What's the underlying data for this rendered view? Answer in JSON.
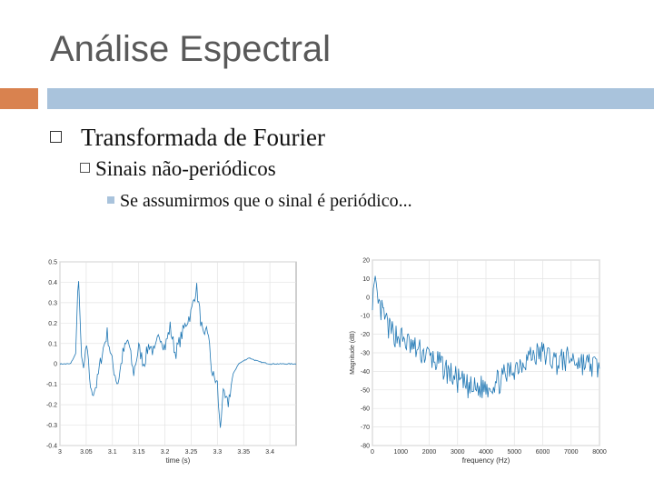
{
  "slide": {
    "title": "Análise Espectral",
    "bullet1": "Transformada de Fourier",
    "bullet2": "Sinais não-periódicos",
    "bullet3": "Se assumirmos que o sinal é periódico..."
  },
  "colors": {
    "accent_orange": "#d9824f",
    "accent_blue": "#a9c3dc",
    "plot_line": "#1f77b4"
  },
  "chart_data": [
    {
      "type": "line",
      "title": "",
      "xlabel": "time (s)",
      "ylabel": "",
      "xlim": [
        3,
        3.45
      ],
      "ylim": [
        -0.4,
        0.5
      ],
      "xticks": [
        "3",
        "3.05",
        "3.1",
        "3.15",
        "3.2",
        "3.25",
        "3.3",
        "3.35",
        "3.4"
      ],
      "yticks": [
        "0.5",
        "0.4",
        "0.3",
        "0.2",
        "0.1",
        "0",
        "-0.1",
        "-0.2",
        "-0.3",
        "-0.4"
      ],
      "grid": true,
      "x": [
        3.0,
        3.02,
        3.03,
        3.035,
        3.04,
        3.045,
        3.05,
        3.06,
        3.07,
        3.08,
        3.09,
        3.1,
        3.11,
        3.12,
        3.13,
        3.14,
        3.15,
        3.16,
        3.17,
        3.18,
        3.19,
        3.2,
        3.21,
        3.22,
        3.24,
        3.25,
        3.26,
        3.27,
        3.275,
        3.28,
        3.29,
        3.3,
        3.305,
        3.31,
        3.32,
        3.33,
        3.34,
        3.36,
        3.38,
        3.4,
        3.42,
        3.45
      ],
      "y": [
        0.0,
        0.0,
        0.05,
        0.45,
        0.1,
        -0.05,
        0.1,
        -0.15,
        -0.1,
        0.05,
        0.15,
        0.0,
        -0.1,
        0.05,
        0.12,
        -0.05,
        0.08,
        0.0,
        0.1,
        0.05,
        0.15,
        0.08,
        0.18,
        0.05,
        0.2,
        0.25,
        0.38,
        0.18,
        0.1,
        0.2,
        -0.05,
        -0.1,
        -0.33,
        -0.15,
        -0.2,
        -0.05,
        0.0,
        0.03,
        0.01,
        0.0,
        0.0,
        0.0
      ]
    },
    {
      "type": "line",
      "title": "",
      "xlabel": "frequency (Hz)",
      "ylabel": "Magnitude (dB)",
      "xlim": [
        0,
        8000
      ],
      "ylim": [
        -80,
        20
      ],
      "xticks": [
        "0",
        "1000",
        "2000",
        "3000",
        "4000",
        "5000",
        "6000",
        "7000",
        "8000"
      ],
      "yticks": [
        "20",
        "10",
        "0",
        "-10",
        "-20",
        "-30",
        "-40",
        "-50",
        "-60",
        "-70",
        "-80"
      ],
      "grid": true,
      "x": [
        0,
        100,
        200,
        400,
        600,
        1000,
        1500,
        2000,
        2500,
        3000,
        3500,
        4000,
        4500,
        5000,
        5500,
        6000,
        6500,
        7000,
        7500,
        8000
      ],
      "y": [
        0,
        5,
        -5,
        -10,
        -18,
        -22,
        -28,
        -32,
        -38,
        -45,
        -50,
        -48,
        -45,
        -38,
        -32,
        -30,
        -35,
        -33,
        -36,
        -38
      ]
    }
  ]
}
